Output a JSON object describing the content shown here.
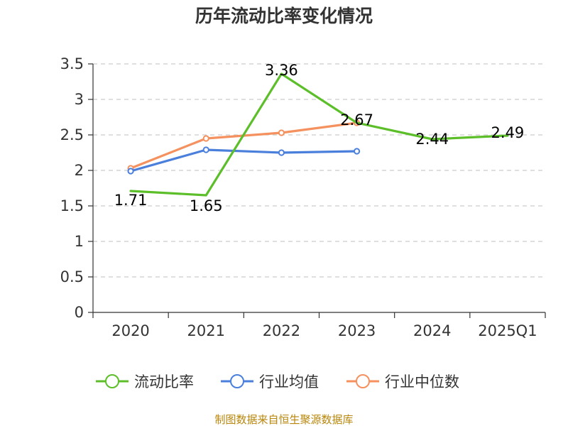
{
  "chart_data": {
    "type": "line",
    "title": "历年流动比率变化情况",
    "xlabel": "",
    "ylabel": "",
    "categories": [
      "2020",
      "2021",
      "2022",
      "2023",
      "2024",
      "2025Q1"
    ],
    "ylim": [
      0,
      3.5
    ],
    "yticks": [
      "0",
      "0.5",
      "1",
      "1.5",
      "2",
      "2.5",
      "3",
      "3.5"
    ],
    "grid": true,
    "legend_position": "bottom",
    "series": [
      {
        "name": "流动比率",
        "color": "#5cbf2a",
        "values": [
          1.71,
          1.65,
          3.36,
          2.67,
          2.44,
          2.49
        ],
        "labels": [
          "1.71",
          "1.65",
          "3.36",
          "2.67",
          "2.44",
          "2.49"
        ]
      },
      {
        "name": "行业均值",
        "color": "#4a7fdb",
        "values": [
          1.99,
          2.29,
          2.25,
          2.27,
          null,
          null
        ]
      },
      {
        "name": "行业中位数",
        "color": "#f4915e",
        "values": [
          2.03,
          2.45,
          2.53,
          2.67,
          null,
          null
        ]
      }
    ],
    "source_note": "制图数据来自恒生聚源数据库"
  }
}
